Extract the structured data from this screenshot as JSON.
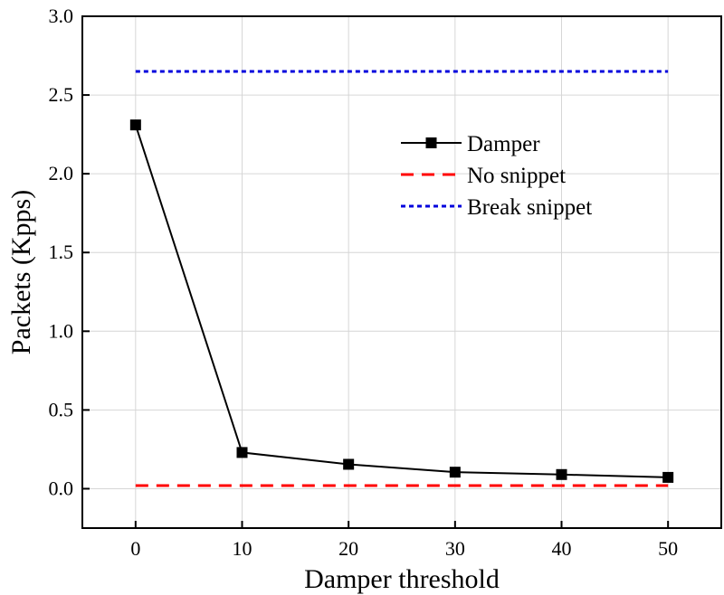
{
  "chart_data": {
    "type": "line",
    "title": "",
    "xlabel": "Damper threshold",
    "ylabel": "Packets (Kpps)",
    "x": [
      0,
      10,
      20,
      30,
      40,
      50
    ],
    "xlim": [
      -5,
      55
    ],
    "ylim": [
      -0.25,
      3.0
    ],
    "xticks": [
      0,
      10,
      20,
      30,
      40,
      50
    ],
    "yticks": [
      0.0,
      0.5,
      1.0,
      1.5,
      2.0,
      2.5,
      3.0
    ],
    "xtick_labels": [
      "0",
      "10",
      "20",
      "30",
      "40",
      "50"
    ],
    "ytick_labels": [
      "0.0",
      "0.5",
      "1.0",
      "1.5",
      "2.0",
      "2.5",
      "3.0"
    ],
    "grid": true,
    "legend_position": "upper-right",
    "series": [
      {
        "name": "Damper",
        "values": [
          2.31,
          0.23,
          0.155,
          0.105,
          0.09,
          0.072
        ],
        "color": "#000000",
        "style": "solid",
        "marker": "square"
      },
      {
        "name": "No snippet",
        "values": [
          0.02,
          0.02,
          0.02,
          0.02,
          0.02,
          0.02
        ],
        "color": "#ff0000",
        "style": "dashed",
        "marker": "none"
      },
      {
        "name": "Break snippet",
        "values": [
          2.65,
          2.65,
          2.65,
          2.65,
          2.65,
          2.65
        ],
        "color": "#0000dd",
        "style": "dotted",
        "marker": "none"
      }
    ]
  }
}
